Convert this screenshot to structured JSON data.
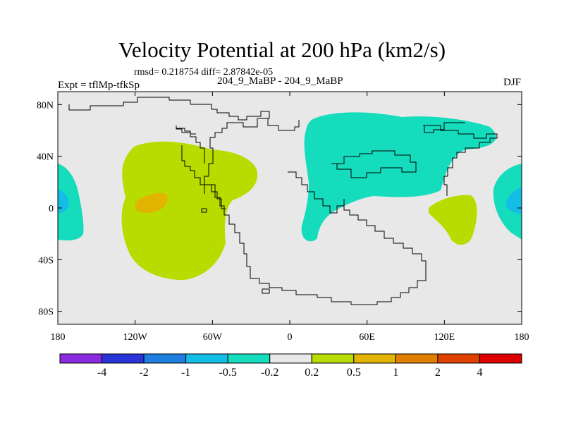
{
  "title": "Velocity Potential at 200 hPa (km2/s)",
  "stats": "rmsd= 0.218754 diff= 2.87842e-05",
  "left_label": "Expt = tflMp-tfkSp",
  "center_label": "204_9_MaBP - 204_9_MaBP",
  "right_label": "DJF",
  "lat_ticks": [
    {
      "label": "80N",
      "lat": 80
    },
    {
      "label": "40N",
      "lat": 40
    },
    {
      "label": "0",
      "lat": 0
    },
    {
      "label": "40S",
      "lat": -40
    },
    {
      "label": "80S",
      "lat": -80
    }
  ],
  "lon_ticks": [
    {
      "label": "180",
      "lon": -180
    },
    {
      "label": "120W",
      "lon": -120
    },
    {
      "label": "60W",
      "lon": -60
    },
    {
      "label": "0",
      "lon": 0
    },
    {
      "label": "60E",
      "lon": 60
    },
    {
      "label": "120E",
      "lon": 120
    },
    {
      "label": "180",
      "lon": 180
    }
  ],
  "colorbar": {
    "colors": [
      "#8a2be2",
      "#2a35d8",
      "#1f7fe0",
      "#14bde6",
      "#14dcbc",
      "#e8e8e8",
      "#b8dc00",
      "#e0b400",
      "#e08000",
      "#e04000",
      "#dd0000"
    ],
    "labels": [
      "-4",
      "-2",
      "-1",
      "-0.5",
      "-0.2",
      "0.2",
      "0.5",
      "1",
      "2",
      "4"
    ]
  },
  "colors": {
    "land_bg": "#e8e8e8",
    "neg_small": "#14dcbc",
    "neg_medium": "#14bde6",
    "pos_small": "#b8dc00",
    "pos_medium": "#e0b400"
  }
}
